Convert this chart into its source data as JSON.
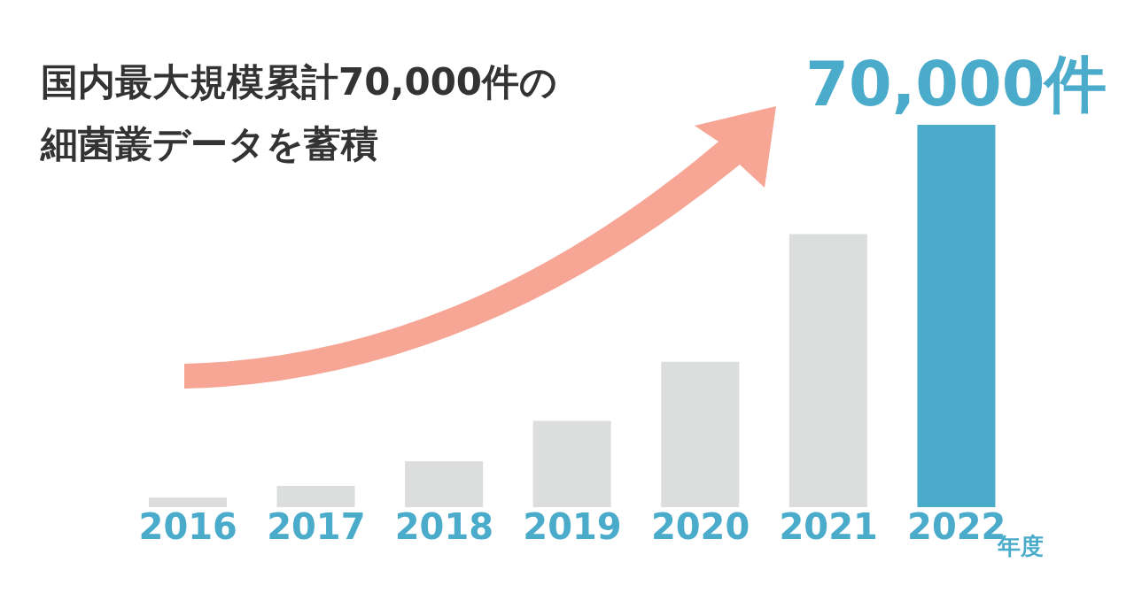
{
  "chart_data": {
    "type": "bar",
    "title": "国内最大規模累計70,000件の細菌叢データを蓄積",
    "xlabel": "年度",
    "categories": [
      "2016",
      "2017",
      "2018",
      "2019",
      "2020",
      "2021",
      "2022"
    ],
    "values": [
      1750,
      3900,
      8400,
      15800,
      26600,
      50000,
      70000
    ],
    "colors": [
      "#dcdddd",
      "#dcdddd",
      "#dcdddd",
      "#dcdddd",
      "#dcdddd",
      "#dcdddd",
      "#4aabcb"
    ],
    "value_labels": [
      null,
      null,
      null,
      null,
      null,
      null,
      "70,000件"
    ]
  }
}
